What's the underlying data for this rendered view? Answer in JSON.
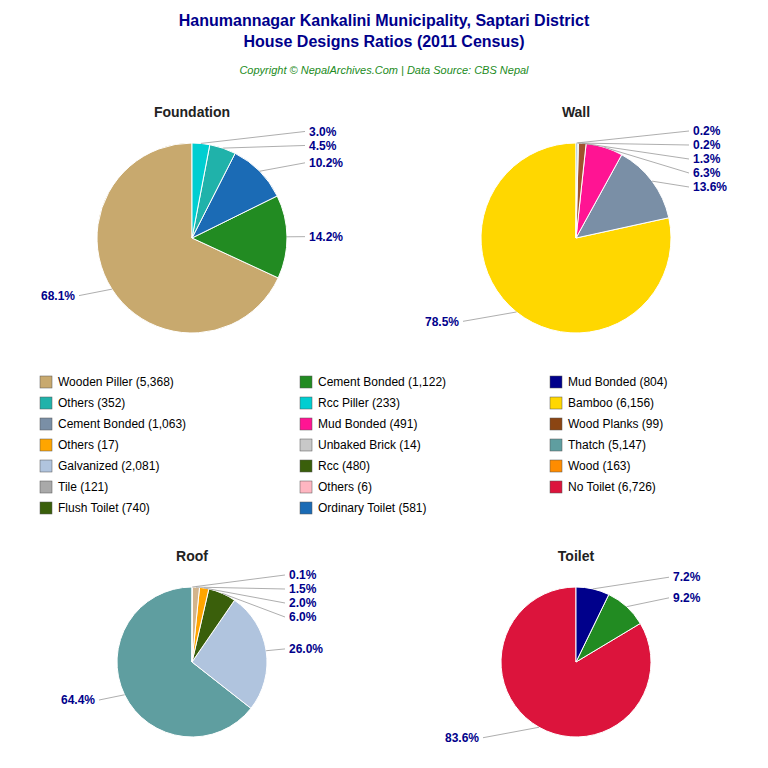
{
  "title": "Hanumannagar Kankalini Municipality, Saptari District\nHouse Designs Ratios (2011 Census)",
  "subtitle": "Copyright © NepalArchives.Com | Data Source: CBS Nepal",
  "chart_data": [
    {
      "type": "pie",
      "title": "Foundation",
      "values": [
        68.1,
        14.2,
        10.2,
        4.5,
        3.0
      ],
      "value_labels": [
        "68.1%",
        "14.2%",
        "10.2%",
        "4.5%",
        "3.0%"
      ],
      "colors": [
        "#C8A96E",
        "#228B22",
        "#1B6BB5",
        "#20B2AA",
        "#00CED1"
      ],
      "data_labels": true
    },
    {
      "type": "pie",
      "title": "Wall",
      "values": [
        78.5,
        13.6,
        6.3,
        1.3,
        0.2,
        0.2
      ],
      "value_labels": [
        "78.5%",
        "13.6%",
        "6.3%",
        "1.3%",
        "0.2%",
        "0.2%"
      ],
      "colors": [
        "#FFD700",
        "#7A8FA6",
        "#FF1493",
        "#A0522D",
        "#5F9EA0",
        "#1B6BB5"
      ],
      "data_labels": true
    },
    {
      "type": "pie",
      "title": "Roof",
      "values": [
        64.4,
        26.0,
        6.0,
        2.0,
        1.5,
        0.1
      ],
      "value_labels": [
        "64.4%",
        "26.0%",
        "6.0%",
        "2.0%",
        "1.5%",
        "0.1%"
      ],
      "colors": [
        "#5F9EA0",
        "#B0C4DE",
        "#3A5F0B",
        "#FFA500",
        "#D2B48C",
        "#FFD700"
      ],
      "data_labels": true
    },
    {
      "type": "pie",
      "title": "Toilet",
      "values": [
        83.6,
        9.2,
        7.2
      ],
      "value_labels": [
        "83.6%",
        "9.2%",
        "7.2%"
      ],
      "colors": [
        "#DC143C",
        "#228B22",
        "#00008B"
      ],
      "data_labels": true
    }
  ],
  "legend_entries": [
    {
      "name": "Wooden Piller (5,368)",
      "color": "#C8A96E"
    },
    {
      "name": "Others (352)",
      "color": "#20B2AA"
    },
    {
      "name": "Cement Bonded (1,063)",
      "color": "#7A8FA6"
    },
    {
      "name": "Others (17)",
      "color": "#FFA500"
    },
    {
      "name": "Galvanized (2,081)",
      "color": "#B0C4DE"
    },
    {
      "name": "Tile (121)",
      "color": "#A9A9A9"
    },
    {
      "name": "Flush Toilet (740)",
      "color": "#3A5F0B"
    },
    {
      "name": "Cement Bonded (1,122)",
      "color": "#228B22"
    },
    {
      "name": "Rcc Piller (233)",
      "color": "#00CED1"
    },
    {
      "name": "Mud Bonded (491)",
      "color": "#FF1493"
    },
    {
      "name": "Unbaked Brick (14)",
      "color": "#C8C8C8"
    },
    {
      "name": "Rcc (480)",
      "color": "#3A5F0B"
    },
    {
      "name": "Others (6)",
      "color": "#FFB6C1"
    },
    {
      "name": "Ordinary Toilet (581)",
      "color": "#1B6BB5"
    },
    {
      "name": "Mud Bonded (804)",
      "color": "#00008B"
    },
    {
      "name": "Bamboo (6,156)",
      "color": "#FFD700"
    },
    {
      "name": "Wood Planks (99)",
      "color": "#8B4513"
    },
    {
      "name": "Thatch (5,147)",
      "color": "#5F9EA0"
    },
    {
      "name": "Wood (163)",
      "color": "#FF8C00"
    },
    {
      "name": "No Toilet (6,726)",
      "color": "#DC143C"
    }
  ]
}
